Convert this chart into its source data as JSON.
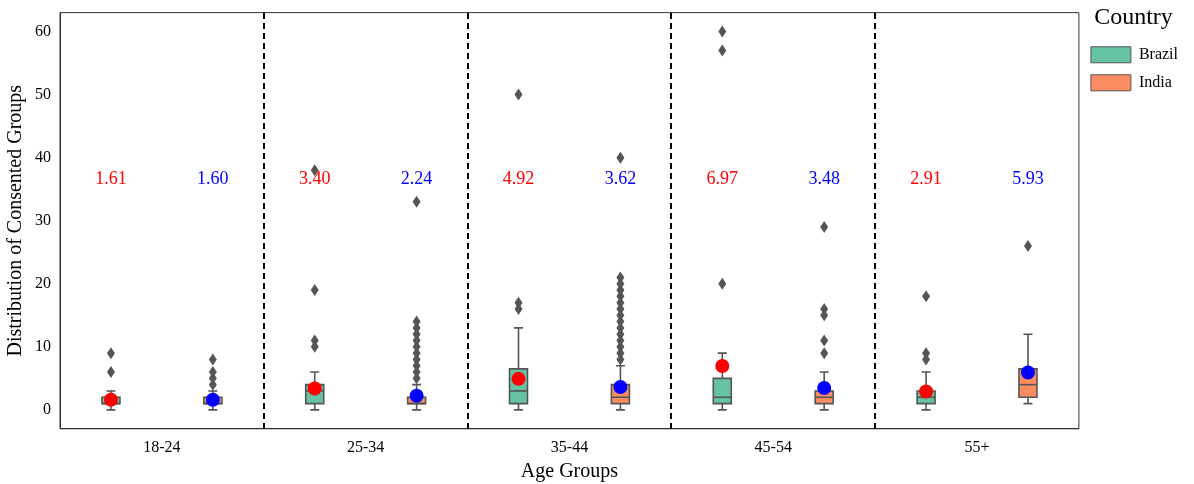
{
  "chart_data": {
    "type": "box",
    "xlabel": "Age Groups",
    "ylabel": "Distribution of Consented Groups",
    "legend_title": "Country",
    "legend": "top right",
    "categories": [
      "18-24",
      "25-34",
      "35-44",
      "45-54",
      "55+"
    ],
    "ylim": [
      -3,
      63
    ],
    "yticks": [
      0,
      10,
      20,
      30,
      40,
      50,
      60
    ],
    "grid": false,
    "series": [
      {
        "name": "Brazil",
        "color": "#66c2a5",
        "value_labels": [
          "1.61",
          "3.40",
          "4.92",
          "6.97",
          "2.91"
        ],
        "boxes": [
          {
            "low": 0,
            "q1": 1,
            "median": 1,
            "q3": 2,
            "high": 3,
            "mean": 1.61,
            "outliers": [
              6,
              9
            ]
          },
          {
            "low": 0,
            "q1": 1,
            "median": 3,
            "q3": 4,
            "high": 6,
            "mean": 3.4,
            "outliers": [
              10,
              11,
              19,
              38
            ]
          },
          {
            "low": 0,
            "q1": 1,
            "median": 3,
            "q3": 6.5,
            "high": 13,
            "mean": 4.92,
            "outliers": [
              16,
              17,
              50
            ]
          },
          {
            "low": 0,
            "q1": 1,
            "median": 2,
            "q3": 5,
            "high": 9,
            "mean": 6.97,
            "outliers": [
              20,
              57,
              60
            ]
          },
          {
            "low": 0,
            "q1": 1,
            "median": 2,
            "q3": 3,
            "high": 6,
            "mean": 2.91,
            "outliers": [
              8,
              9,
              18
            ]
          }
        ]
      },
      {
        "name": "India",
        "color": "#fc8d62",
        "value_labels": [
          "1.60",
          "2.24",
          "3.62",
          "3.48",
          "5.93"
        ],
        "boxes": [
          {
            "low": 0,
            "q1": 1,
            "median": 1,
            "q3": 2,
            "high": 3,
            "mean": 1.6,
            "outliers": [
              4,
              5,
              6,
              8
            ]
          },
          {
            "low": 0,
            "q1": 1,
            "median": 1,
            "q3": 2,
            "high": 4,
            "mean": 2.24,
            "outliers": [
              5,
              6,
              7,
              8,
              9,
              10,
              11,
              12,
              13,
              14,
              33
            ]
          },
          {
            "low": 0,
            "q1": 1,
            "median": 2,
            "q3": 4,
            "high": 7,
            "mean": 3.62,
            "outliers": [
              8,
              9,
              10,
              11,
              12,
              13,
              14,
              15,
              16,
              17,
              18,
              19,
              20,
              21,
              40
            ]
          },
          {
            "low": 0,
            "q1": 1,
            "median": 2,
            "q3": 3,
            "high": 6,
            "mean": 3.48,
            "outliers": [
              9,
              11,
              15,
              16,
              29
            ]
          },
          {
            "low": 1,
            "q1": 2,
            "median": 4,
            "q3": 6.5,
            "high": 12,
            "mean": 5.93,
            "outliers": [
              26
            ]
          }
        ]
      }
    ]
  }
}
